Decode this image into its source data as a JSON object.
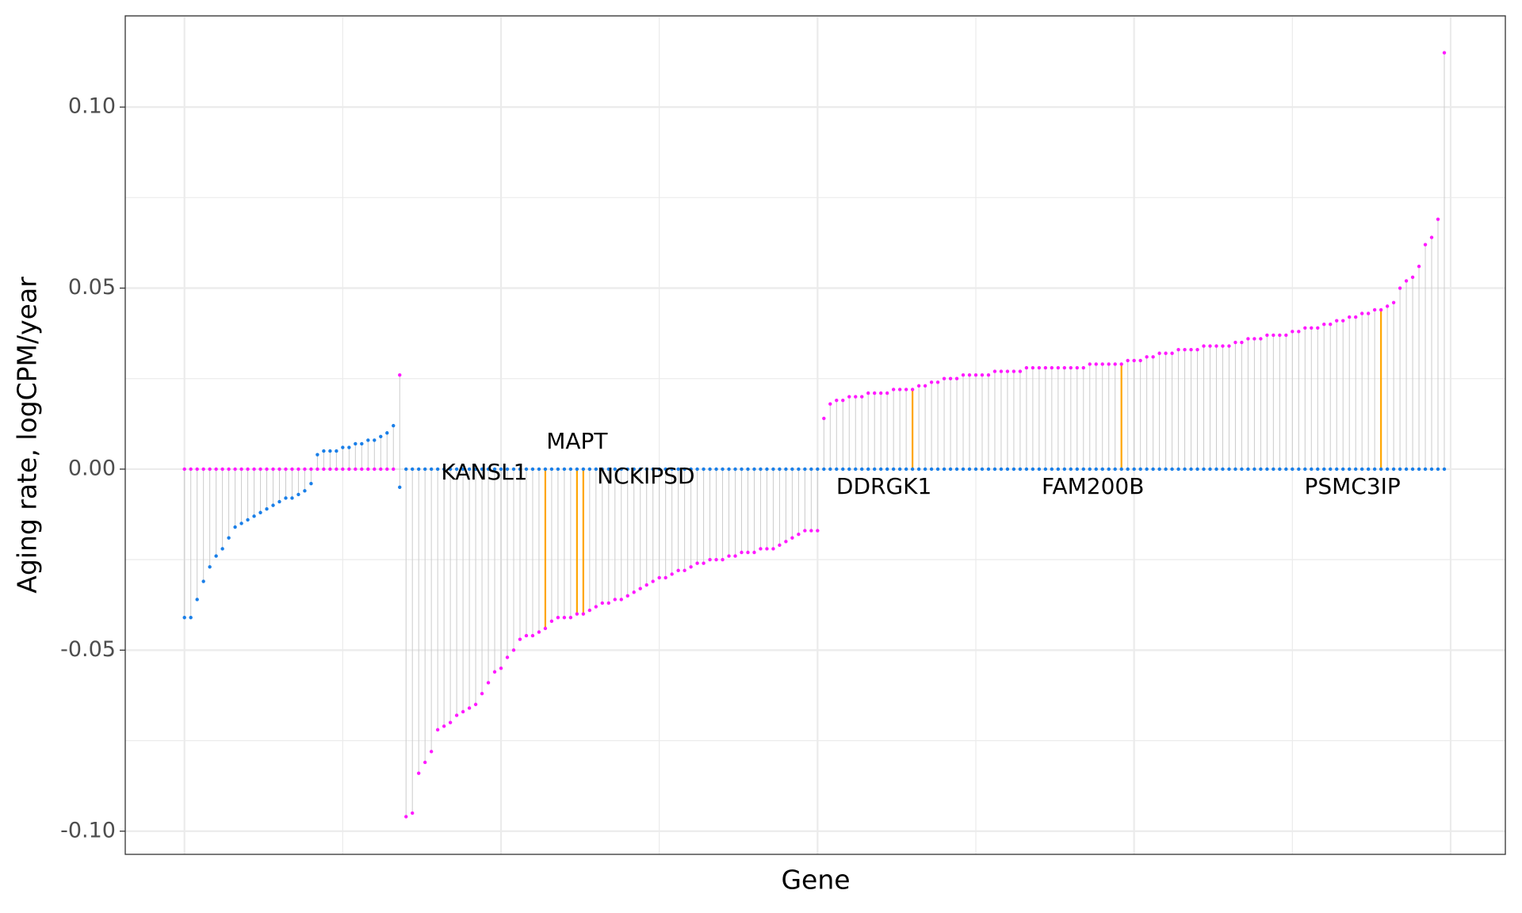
{
  "chart_data": {
    "type": "lollipop",
    "x_label": "Gene",
    "y_label": "Aging rate, logCPM/year",
    "ylim": [
      -0.1064,
      0.1252
    ],
    "yticks": [
      {
        "value": -0.1,
        "label": "-0.10"
      },
      {
        "value": -0.05,
        "label": "-0.05"
      },
      {
        "value": 0,
        "label": "0.00"
      },
      {
        "value": 0.05,
        "label": "0.05"
      },
      {
        "value": 0.1,
        "label": "0.10"
      }
    ],
    "grid": true,
    "stem_color": "#cccccc",
    "highlight_color": "#ffa500",
    "categories": [
      null,
      null,
      null,
      null,
      null,
      null,
      null,
      null,
      null,
      null,
      null,
      null,
      null,
      null,
      null,
      null,
      null,
      null,
      null,
      null,
      null,
      null,
      null,
      null,
      null,
      null,
      null,
      null,
      null,
      null,
      null,
      null,
      null,
      null,
      null,
      null,
      null,
      null,
      null,
      null,
      null,
      null,
      null,
      null,
      null,
      null,
      null,
      null,
      null,
      null,
      null,
      null,
      null,
      null,
      null,
      null,
      null,
      "KANSL1",
      null,
      null,
      null,
      null,
      "MAPT",
      "NCKIPSD",
      null,
      null,
      null,
      null,
      null,
      null,
      null,
      null,
      null,
      null,
      null,
      null,
      null,
      null,
      null,
      null,
      null,
      null,
      null,
      null,
      null,
      null,
      null,
      null,
      null,
      null,
      null,
      null,
      null,
      null,
      null,
      null,
      null,
      null,
      null,
      null,
      null,
      null,
      null,
      null,
      null,
      null,
      null,
      null,
      null,
      null,
      null,
      null,
      null,
      null,
      null,
      "DDRGK1",
      null,
      null,
      null,
      null,
      null,
      null,
      null,
      null,
      null,
      null,
      null,
      null,
      null,
      null,
      null,
      null,
      null,
      null,
      null,
      null,
      null,
      null,
      null,
      null,
      null,
      null,
      null,
      null,
      null,
      null,
      null,
      null,
      "FAM200B",
      null,
      null,
      null,
      null,
      null,
      null,
      null,
      null,
      null,
      null,
      null,
      null,
      null,
      null,
      null,
      null,
      null,
      null,
      null,
      null,
      null,
      null,
      null,
      null,
      null,
      null,
      null,
      null,
      null,
      null,
      null,
      null,
      null,
      null,
      null,
      null,
      null,
      null,
      null,
      null,
      "PSMC3IP",
      null,
      null,
      null,
      null,
      null,
      null,
      null,
      null,
      null,
      null
    ],
    "series": [
      {
        "color": "#1a7fe8",
        "values": [
          -0.041,
          -0.041,
          -0.036,
          -0.031,
          -0.027,
          -0.024,
          -0.022,
          -0.019,
          -0.016,
          -0.015,
          -0.014,
          -0.013,
          -0.012,
          -0.011,
          -0.01,
          -0.009,
          -0.008,
          -0.008,
          -0.007,
          -0.006,
          -0.004,
          0.004,
          0.005,
          0.005,
          0.005,
          0.006,
          0.006,
          0.007,
          0.007,
          0.008,
          0.008,
          0.009,
          0.01,
          0.012,
          -0.005,
          0,
          0,
          0,
          0,
          0,
          0,
          0,
          0,
          0,
          0,
          0,
          0,
          0,
          0,
          0,
          0,
          0,
          0,
          0,
          0,
          0,
          0,
          0,
          0,
          0,
          0,
          0,
          0,
          0,
          0,
          0,
          0,
          0,
          0,
          0,
          0,
          0,
          0,
          0,
          0,
          0,
          0,
          0,
          0,
          0,
          0,
          0,
          0,
          0,
          0,
          0,
          0,
          0,
          0,
          0,
          0,
          0,
          0,
          0,
          0,
          0,
          0,
          0,
          0,
          0,
          0,
          0,
          0,
          0,
          0,
          0,
          0,
          0,
          0,
          0,
          0,
          0,
          0,
          0,
          0,
          0,
          0,
          0,
          0,
          0,
          0,
          0,
          0,
          0,
          0,
          0,
          0,
          0,
          0,
          0,
          0,
          0,
          0,
          0,
          0,
          0,
          0,
          0,
          0,
          0,
          0,
          0,
          0,
          0,
          0,
          0,
          0,
          0,
          0,
          0,
          0,
          0,
          0,
          0,
          0,
          0,
          0,
          0,
          0,
          0,
          0,
          0,
          0,
          0,
          0,
          0,
          0,
          0,
          0,
          0,
          0,
          0,
          0,
          0,
          0,
          0,
          0,
          0,
          0,
          0,
          0,
          0,
          0,
          0,
          0,
          0,
          0,
          0,
          0,
          0,
          0,
          0,
          0,
          0,
          0,
          0,
          0,
          0,
          0,
          0
        ]
      },
      {
        "color": "#ff1aff",
        "values": [
          0,
          0,
          0,
          0,
          0,
          0,
          0,
          0,
          0,
          0,
          0,
          0,
          0,
          0,
          0,
          0,
          0,
          0,
          0,
          0,
          0,
          0,
          0,
          0,
          0,
          0,
          0,
          0,
          0,
          0,
          0,
          0,
          0,
          0,
          0.026,
          -0.096,
          -0.095,
          -0.084,
          -0.081,
          -0.078,
          -0.072,
          -0.071,
          -0.07,
          -0.068,
          -0.067,
          -0.066,
          -0.065,
          -0.062,
          -0.059,
          -0.056,
          -0.055,
          -0.052,
          -0.05,
          -0.047,
          -0.046,
          -0.046,
          -0.045,
          -0.044,
          -0.042,
          -0.041,
          -0.041,
          -0.041,
          -0.04,
          -0.04,
          -0.039,
          -0.038,
          -0.037,
          -0.037,
          -0.036,
          -0.036,
          -0.035,
          -0.034,
          -0.033,
          -0.032,
          -0.031,
          -0.03,
          -0.03,
          -0.029,
          -0.028,
          -0.028,
          -0.027,
          -0.026,
          -0.026,
          -0.025,
          -0.025,
          -0.025,
          -0.024,
          -0.024,
          -0.023,
          -0.023,
          -0.023,
          -0.022,
          -0.022,
          -0.022,
          -0.021,
          -0.02,
          -0.019,
          -0.018,
          -0.017,
          -0.017,
          -0.017,
          0.014,
          0.018,
          0.019,
          0.019,
          0.02,
          0.02,
          0.02,
          0.021,
          0.021,
          0.021,
          0.021,
          0.022,
          0.022,
          0.022,
          0.022,
          0.023,
          0.023,
          0.024,
          0.024,
          0.025,
          0.025,
          0.025,
          0.026,
          0.026,
          0.026,
          0.026,
          0.026,
          0.027,
          0.027,
          0.027,
          0.027,
          0.027,
          0.028,
          0.028,
          0.028,
          0.028,
          0.028,
          0.028,
          0.028,
          0.028,
          0.028,
          0.028,
          0.029,
          0.029,
          0.029,
          0.029,
          0.029,
          0.029,
          0.03,
          0.03,
          0.03,
          0.031,
          0.031,
          0.032,
          0.032,
          0.032,
          0.033,
          0.033,
          0.033,
          0.033,
          0.034,
          0.034,
          0.034,
          0.034,
          0.034,
          0.035,
          0.035,
          0.036,
          0.036,
          0.036,
          0.037,
          0.037,
          0.037,
          0.037,
          0.038,
          0.038,
          0.039,
          0.039,
          0.039,
          0.04,
          0.04,
          0.041,
          0.041,
          0.042,
          0.042,
          0.043,
          0.043,
          0.044,
          0.044,
          0.045,
          0.046,
          0.05,
          0.052,
          0.053,
          0.056,
          0.062,
          0.064,
          0.069,
          0.115
        ]
      }
    ]
  }
}
